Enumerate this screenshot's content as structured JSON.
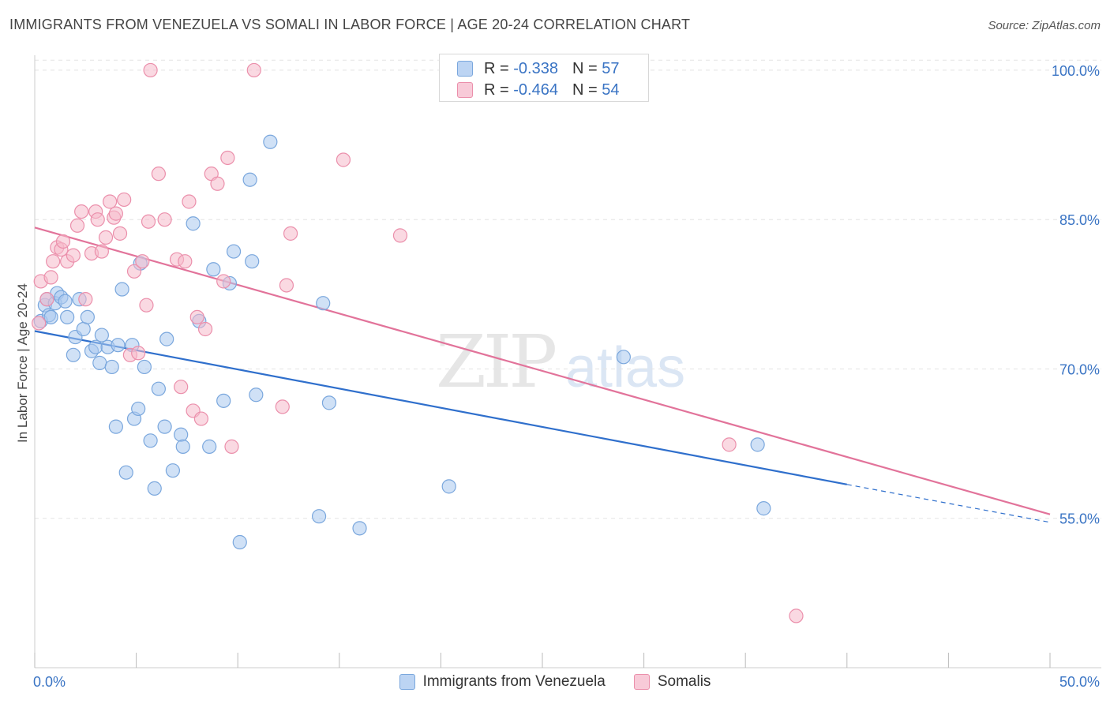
{
  "header": {
    "title": "IMMIGRANTS FROM VENEZUELA VS SOMALI IN LABOR FORCE | AGE 20-24 CORRELATION CHART",
    "source": "Source: ZipAtlas.com"
  },
  "watermark": {
    "zip": "ZIP",
    "atlas": "atlas"
  },
  "legend": {
    "r_label": "R =",
    "n_label": "N =",
    "series": [
      {
        "r": "-0.338",
        "n": "57"
      },
      {
        "r": "-0.464",
        "n": "54"
      }
    ]
  },
  "colors": {
    "venezuela_fill": "#a9c8ef",
    "venezuela_stroke": "#7aa7dd",
    "venezuela_line": "#2f6fcc",
    "somali_fill": "#f6b9cb",
    "somali_stroke": "#eb8fab",
    "somali_line": "#e2739a",
    "axis_label": "#3a74c4",
    "grid": "#e4e4e4"
  },
  "chart_data": {
    "type": "scatter",
    "title": "IMMIGRANTS FROM VENEZUELA VS SOMALI IN LABOR FORCE | AGE 20-24 CORRELATION CHART",
    "xlabel": "",
    "ylabel": "In Labor Force | Age 20-24",
    "xlim": [
      0,
      50
    ],
    "ylim": [
      40,
      101.5
    ],
    "x_tick_labels": [
      "0.0%",
      "50.0%"
    ],
    "y_ticks": [
      55,
      70,
      85,
      100
    ],
    "y_tick_labels": [
      "55.0%",
      "70.0%",
      "85.0%",
      "100.0%"
    ],
    "grid": true,
    "legend_position": "top-center",
    "series": [
      {
        "name": "Immigrants from Venezuela",
        "trend": {
          "x": [
            0,
            40,
            50
          ],
          "y": [
            73.8,
            58.4,
            54.6
          ],
          "solid_until_x": 40
        },
        "points": [
          {
            "x": 0.3,
            "y": 74.8
          },
          {
            "x": 0.5,
            "y": 76.4
          },
          {
            "x": 0.6,
            "y": 77.0
          },
          {
            "x": 0.7,
            "y": 75.4
          },
          {
            "x": 0.8,
            "y": 75.2
          },
          {
            "x": 1.0,
            "y": 76.6
          },
          {
            "x": 1.1,
            "y": 77.6
          },
          {
            "x": 1.3,
            "y": 77.2
          },
          {
            "x": 1.5,
            "y": 76.8
          },
          {
            "x": 1.6,
            "y": 75.2
          },
          {
            "x": 1.9,
            "y": 71.4
          },
          {
            "x": 2.0,
            "y": 73.2
          },
          {
            "x": 2.2,
            "y": 77.0
          },
          {
            "x": 2.4,
            "y": 74.0
          },
          {
            "x": 2.6,
            "y": 75.2
          },
          {
            "x": 2.8,
            "y": 71.8
          },
          {
            "x": 3.0,
            "y": 72.2
          },
          {
            "x": 3.2,
            "y": 70.6
          },
          {
            "x": 3.3,
            "y": 73.4
          },
          {
            "x": 3.6,
            "y": 72.2
          },
          {
            "x": 3.8,
            "y": 70.2
          },
          {
            "x": 4.0,
            "y": 64.2
          },
          {
            "x": 4.1,
            "y": 72.4
          },
          {
            "x": 4.3,
            "y": 78.0
          },
          {
            "x": 4.5,
            "y": 59.6
          },
          {
            "x": 4.8,
            "y": 72.4
          },
          {
            "x": 4.9,
            "y": 65.0
          },
          {
            "x": 5.1,
            "y": 66.0
          },
          {
            "x": 5.2,
            "y": 80.6
          },
          {
            "x": 5.4,
            "y": 70.2
          },
          {
            "x": 5.7,
            "y": 62.8
          },
          {
            "x": 5.9,
            "y": 58.0
          },
          {
            "x": 6.1,
            "y": 68.0
          },
          {
            "x": 6.4,
            "y": 64.2
          },
          {
            "x": 6.5,
            "y": 73.0
          },
          {
            "x": 6.8,
            "y": 59.8
          },
          {
            "x": 7.2,
            "y": 63.4
          },
          {
            "x": 7.3,
            "y": 62.2
          },
          {
            "x": 7.8,
            "y": 84.6
          },
          {
            "x": 8.1,
            "y": 74.8
          },
          {
            "x": 8.6,
            "y": 62.2
          },
          {
            "x": 8.8,
            "y": 80.0
          },
          {
            "x": 9.3,
            "y": 66.8
          },
          {
            "x": 9.6,
            "y": 78.6
          },
          {
            "x": 9.8,
            "y": 81.8
          },
          {
            "x": 10.1,
            "y": 52.6
          },
          {
            "x": 10.6,
            "y": 89.0
          },
          {
            "x": 10.7,
            "y": 80.8
          },
          {
            "x": 10.9,
            "y": 67.4
          },
          {
            "x": 11.6,
            "y": 92.8
          },
          {
            "x": 14.0,
            "y": 55.2
          },
          {
            "x": 14.2,
            "y": 76.6
          },
          {
            "x": 14.5,
            "y": 66.6
          },
          {
            "x": 16.0,
            "y": 54.0
          },
          {
            "x": 20.4,
            "y": 58.2
          },
          {
            "x": 29.0,
            "y": 71.2
          },
          {
            "x": 35.6,
            "y": 62.4
          },
          {
            "x": 35.9,
            "y": 56.0
          }
        ]
      },
      {
        "name": "Somalis",
        "trend": {
          "x": [
            0,
            50
          ],
          "y": [
            84.2,
            55.4
          ]
        },
        "points": [
          {
            "x": 0.2,
            "y": 74.6
          },
          {
            "x": 0.3,
            "y": 78.8
          },
          {
            "x": 0.6,
            "y": 77.0
          },
          {
            "x": 0.8,
            "y": 79.2
          },
          {
            "x": 0.9,
            "y": 80.8
          },
          {
            "x": 1.1,
            "y": 82.2
          },
          {
            "x": 1.3,
            "y": 82.0
          },
          {
            "x": 1.4,
            "y": 82.8
          },
          {
            "x": 1.6,
            "y": 80.8
          },
          {
            "x": 1.9,
            "y": 81.4
          },
          {
            "x": 2.1,
            "y": 84.4
          },
          {
            "x": 2.3,
            "y": 85.8
          },
          {
            "x": 2.5,
            "y": 77.0
          },
          {
            "x": 2.8,
            "y": 81.6
          },
          {
            "x": 3.0,
            "y": 85.8
          },
          {
            "x": 3.1,
            "y": 85.0
          },
          {
            "x": 3.3,
            "y": 81.8
          },
          {
            "x": 3.5,
            "y": 83.2
          },
          {
            "x": 3.7,
            "y": 86.8
          },
          {
            "x": 3.9,
            "y": 85.2
          },
          {
            "x": 4.0,
            "y": 85.6
          },
          {
            "x": 4.2,
            "y": 83.6
          },
          {
            "x": 4.4,
            "y": 87.0
          },
          {
            "x": 4.7,
            "y": 71.4
          },
          {
            "x": 4.9,
            "y": 79.8
          },
          {
            "x": 5.1,
            "y": 71.6
          },
          {
            "x": 5.3,
            "y": 80.8
          },
          {
            "x": 5.5,
            "y": 76.4
          },
          {
            "x": 5.6,
            "y": 84.8
          },
          {
            "x": 5.7,
            "y": 100.0
          },
          {
            "x": 6.1,
            "y": 89.6
          },
          {
            "x": 6.4,
            "y": 85.0
          },
          {
            "x": 7.0,
            "y": 81.0
          },
          {
            "x": 7.2,
            "y": 68.2
          },
          {
            "x": 7.4,
            "y": 80.8
          },
          {
            "x": 7.6,
            "y": 86.8
          },
          {
            "x": 7.8,
            "y": 65.8
          },
          {
            "x": 8.0,
            "y": 75.2
          },
          {
            "x": 8.2,
            "y": 65.0
          },
          {
            "x": 8.4,
            "y": 74.0
          },
          {
            "x": 8.7,
            "y": 89.6
          },
          {
            "x": 9.0,
            "y": 88.6
          },
          {
            "x": 9.3,
            "y": 78.8
          },
          {
            "x": 9.5,
            "y": 91.2
          },
          {
            "x": 9.7,
            "y": 62.2
          },
          {
            "x": 10.8,
            "y": 100.0
          },
          {
            "x": 12.2,
            "y": 66.2
          },
          {
            "x": 12.4,
            "y": 78.4
          },
          {
            "x": 12.6,
            "y": 83.6
          },
          {
            "x": 15.2,
            "y": 91.0
          },
          {
            "x": 18.0,
            "y": 83.4
          },
          {
            "x": 34.2,
            "y": 62.4
          },
          {
            "x": 37.5,
            "y": 45.2
          }
        ]
      }
    ]
  }
}
